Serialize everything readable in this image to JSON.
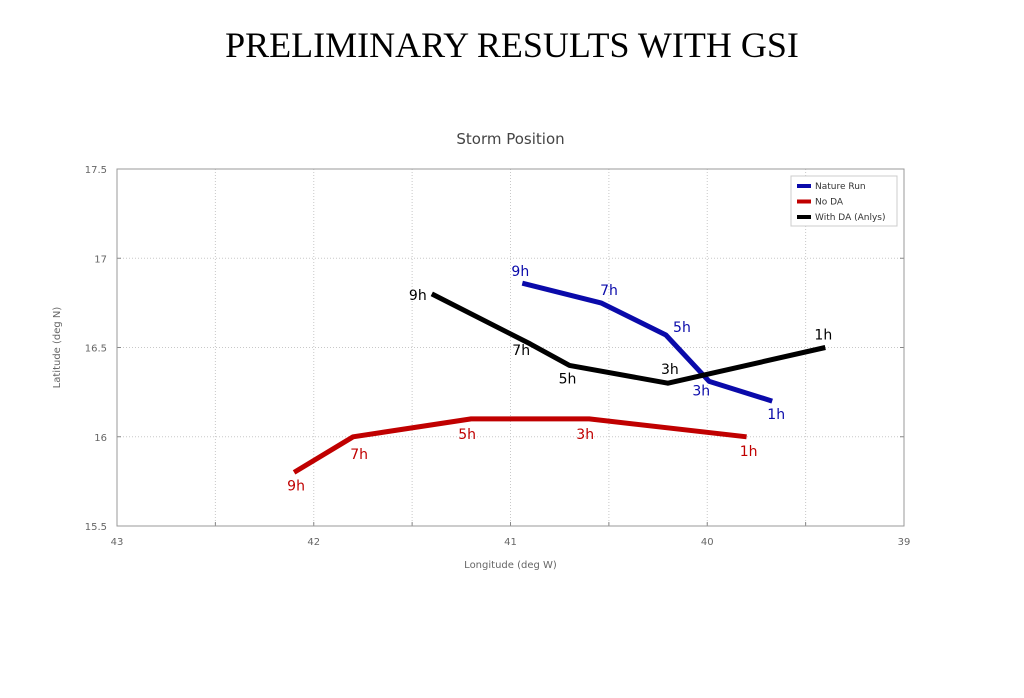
{
  "slide": {
    "title": "PRELIMINARY RESULTS WITH GSI"
  },
  "chart_data": {
    "type": "line",
    "title": "Storm Position",
    "xlabel": "Longitude (deg W)",
    "ylabel": "Latitude (deg N)",
    "xlim": [
      43,
      39
    ],
    "ylim": [
      15.5,
      17.5
    ],
    "x_ticks": [
      {
        "value": 43,
        "label": "43"
      },
      {
        "value": 42,
        "label": "42"
      },
      {
        "value": 41,
        "label": "41"
      },
      {
        "value": 40,
        "label": "40"
      },
      {
        "value": 39,
        "label": "39"
      }
    ],
    "y_ticks": [
      {
        "value": 15.5,
        "label": "15.5"
      },
      {
        "value": 16,
        "label": "16"
      },
      {
        "value": 16.5,
        "label": "16.5"
      },
      {
        "value": 17,
        "label": "17"
      },
      {
        "value": 17.5,
        "label": "17.5"
      }
    ],
    "grid": true,
    "legend": "top-right",
    "series": [
      {
        "name": "Nature Run",
        "color": "#0a0aaa",
        "points": [
          {
            "x": 40.94,
            "y": 16.86,
            "label": "9h"
          },
          {
            "x": 40.54,
            "y": 16.75,
            "label": "7h"
          },
          {
            "x": 40.21,
            "y": 16.57,
            "label": "5h"
          },
          {
            "x": 39.99,
            "y": 16.31,
            "label": "3h"
          },
          {
            "x": 39.67,
            "y": 16.2,
            "label": "1h"
          }
        ]
      },
      {
        "name": "No DA",
        "color": "#c00000",
        "points": [
          {
            "x": 42.1,
            "y": 15.8,
            "label": "9h"
          },
          {
            "x": 41.8,
            "y": 16.0,
            "label": "7h"
          },
          {
            "x": 41.2,
            "y": 16.1,
            "label": "5h"
          },
          {
            "x": 40.6,
            "y": 16.1,
            "label": "3h"
          },
          {
            "x": 39.8,
            "y": 16.0,
            "label": "1h"
          }
        ]
      },
      {
        "name": "With DA (Anlys)",
        "color": "#000000",
        "points": [
          {
            "x": 41.4,
            "y": 16.8,
            "label": "9h"
          },
          {
            "x": 40.9,
            "y": 16.52,
            "label": "7h"
          },
          {
            "x": 40.7,
            "y": 16.4,
            "label": "5h"
          },
          {
            "x": 40.2,
            "y": 16.3,
            "label": "3h"
          },
          {
            "x": 39.4,
            "y": 16.5,
            "label": "1h"
          }
        ]
      }
    ]
  }
}
